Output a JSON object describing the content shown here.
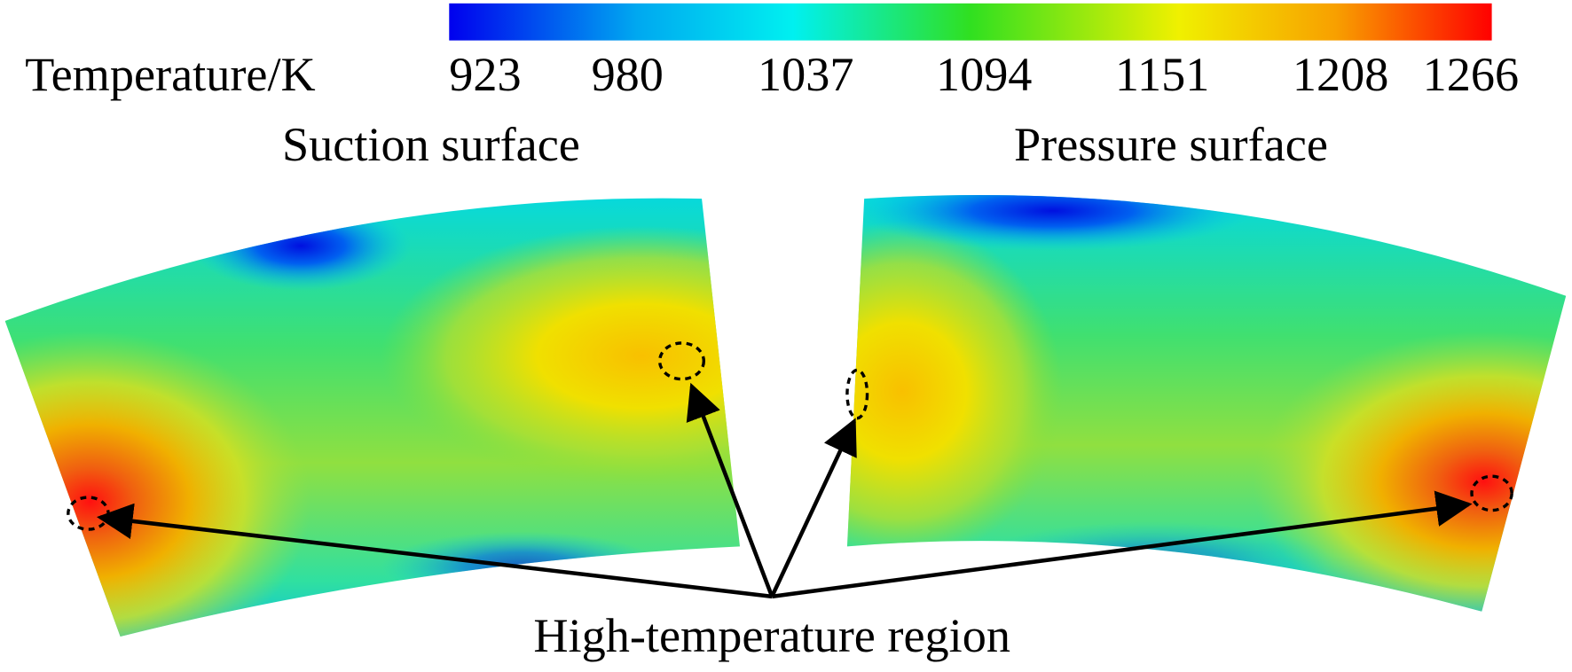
{
  "colorbar": {
    "label": "Temperature/K",
    "ticks": [
      923,
      980,
      1037,
      1094,
      1151,
      1208,
      1266
    ]
  },
  "panels": [
    {
      "title": "Suction surface"
    },
    {
      "title": "Pressure surface"
    }
  ],
  "annotation": "High-temperature region"
}
